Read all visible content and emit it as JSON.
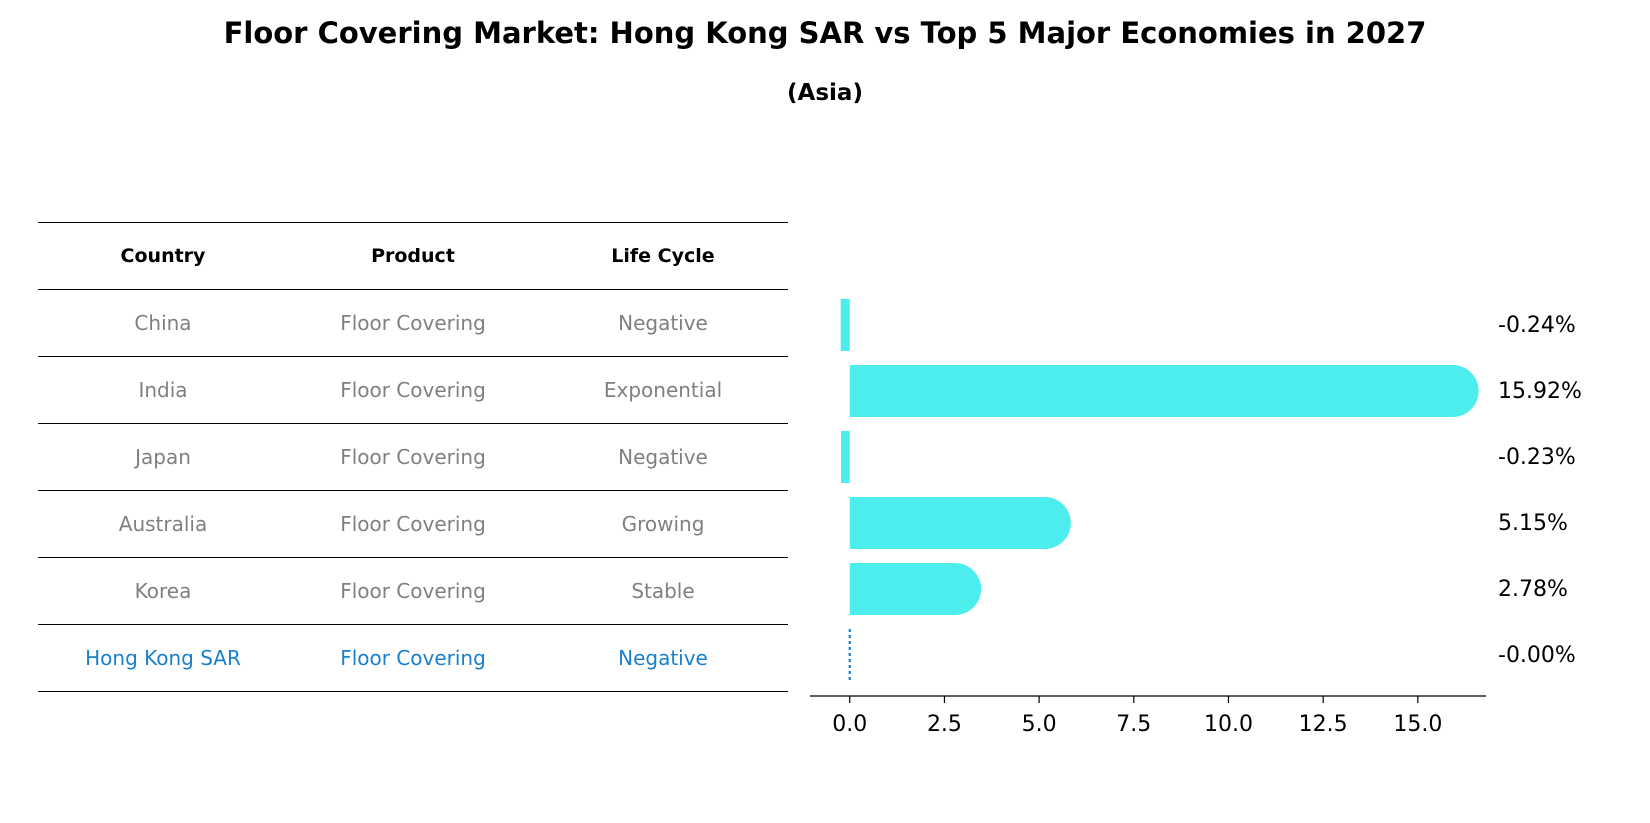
{
  "title": "Floor Covering Market: Hong Kong SAR vs Top 5 Major Economies in 2027",
  "subtitle": "(Asia)",
  "table": {
    "headers": [
      "Country",
      "Product",
      "Life Cycle"
    ],
    "rows": [
      [
        "China",
        "Floor Covering",
        "Negative"
      ],
      [
        "India",
        "Floor Covering",
        "Exponential"
      ],
      [
        "Japan",
        "Floor Covering",
        "Negative"
      ],
      [
        "Australia",
        "Floor Covering",
        "Growing"
      ],
      [
        "Korea",
        "Floor Covering",
        "Stable"
      ],
      [
        "Hong Kong SAR",
        "Floor Covering",
        "Negative"
      ]
    ],
    "highlight_color": "#1a80cc",
    "text_color": "#808080"
  },
  "chart_data": {
    "type": "bar",
    "orientation": "horizontal",
    "categories": [
      "China",
      "India",
      "Japan",
      "Australia",
      "Korea",
      "Hong Kong SAR"
    ],
    "values": [
      -0.24,
      15.92,
      -0.23,
      5.15,
      2.78,
      -0.0
    ],
    "value_labels": [
      "-0.24%",
      "15.92%",
      "-0.23%",
      "5.15%",
      "2.78%",
      "-0.00%"
    ],
    "xlim": [
      -1.05,
      16.8
    ],
    "xticks": [
      0.0,
      2.5,
      5.0,
      7.5,
      10.0,
      12.5,
      15.0
    ],
    "xtick_labels": [
      "0.0",
      "2.5",
      "5.0",
      "7.5",
      "10.0",
      "12.5",
      "15.0"
    ],
    "bar_color": "#4deded",
    "zero_line_color": "#1a80cc",
    "grid": false
  }
}
